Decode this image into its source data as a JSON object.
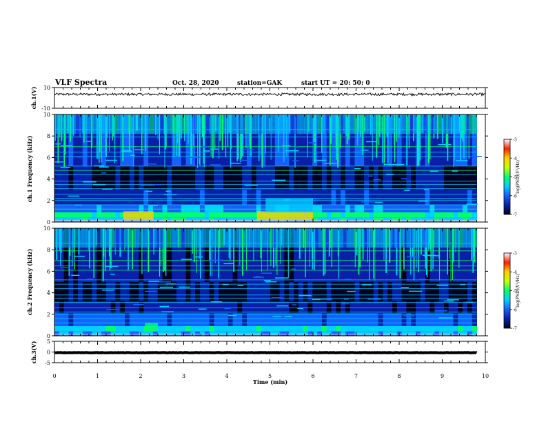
{
  "header": {
    "title": "VLF Spectra",
    "date": "Oct. 28, 2020",
    "station": "station=GAK",
    "start_ut": "start UT =  20: 50: 0"
  },
  "chart_data": [
    {
      "type": "line",
      "name": "ch1-waveform",
      "ylabel": "ch.1(V)",
      "ylim": [
        -10,
        10
      ],
      "yticks": [
        "10",
        "-10"
      ],
      "xlim": [
        0,
        10
      ],
      "level": 3.5,
      "color": "#000000"
    },
    {
      "type": "heatmap",
      "name": "ch1-spectrogram",
      "ylabel": "ch.1 Frequency (kHz)",
      "ylim": [
        0,
        10
      ],
      "yticks": [
        "0",
        "2",
        "4",
        "6",
        "8",
        "10"
      ],
      "xlim": [
        0,
        9.8
      ],
      "colorbar": {
        "label": "log(PSD)(V²/Hz)",
        "ticks": [
          "-3",
          "-4",
          "-5",
          "-6",
          "-7"
        ],
        "range": [
          -7,
          -3
        ]
      }
    },
    {
      "type": "heatmap",
      "name": "ch2-spectrogram",
      "ylabel": "ch.2 Frequency (kHz)",
      "ylim": [
        0,
        10
      ],
      "yticks": [
        "0",
        "2",
        "4",
        "6",
        "8",
        "10"
      ],
      "xlim": [
        0,
        9.8
      ],
      "colorbar": {
        "label": "log(PSD)(V²/Hz)",
        "ticks": [
          "-3",
          "-4",
          "-5",
          "-6",
          "-7"
        ],
        "range": [
          -7,
          -3
        ]
      }
    },
    {
      "type": "line",
      "name": "ch3-waveform",
      "ylabel": "ch.3(V)",
      "ylim": [
        -5,
        5
      ],
      "yticks": [
        "5",
        "0",
        "-5"
      ],
      "xlim": [
        0,
        9.8
      ],
      "level": -0.3,
      "color": "#000000"
    }
  ],
  "xaxis": {
    "label": "Time (min)",
    "ticks": [
      "0",
      "1",
      "2",
      "3",
      "4",
      "5",
      "6",
      "7",
      "8",
      "9",
      "10"
    ],
    "range": [
      0,
      10
    ]
  },
  "colors": {
    "background": "#ffffff",
    "colormap": [
      "#000020",
      "#0a1fa8",
      "#1560ff",
      "#00d0ff",
      "#00ff70",
      "#c8ff00",
      "#ffd000",
      "#ff2000",
      "#ffffff"
    ]
  }
}
